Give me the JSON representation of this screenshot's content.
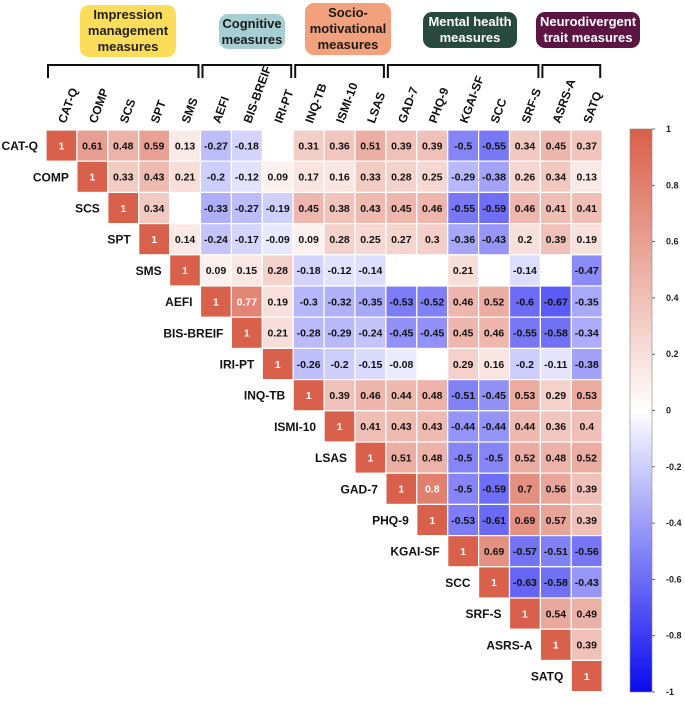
{
  "chart_data": {
    "type": "heatmap",
    "variables": [
      "CAT-Q",
      "COMP",
      "SCS",
      "SPT",
      "SMS",
      "AEFI",
      "BIS-BREIF",
      "IRI-PT",
      "INQ-TB",
      "ISMI-10",
      "LSAS",
      "GAD-7",
      "PHQ-9",
      "KGAI-SF",
      "SCC",
      "SRF-S",
      "ASRS-A",
      "SATQ"
    ],
    "groups": [
      {
        "name": "Impression management measures",
        "label": "Impression\nmanagement\nmeasures",
        "variables": [
          "CAT-Q",
          "COMP",
          "SCS",
          "SPT",
          "SMS"
        ],
        "color": "#FCDD5A"
      },
      {
        "name": "Cognitive measures",
        "label": "Cognitive\nmeasures",
        "variables": [
          "AEFI",
          "BIS-BREIF",
          "IRI-PT"
        ],
        "color": "#A7CED3"
      },
      {
        "name": "Socio-motivational measures",
        "label": "Socio-\nmotivational\nmeasures",
        "variables": [
          "INQ-TB",
          "ISMI-10",
          "LSAS"
        ],
        "color": "#F3A07C"
      },
      {
        "name": "Mental health measures",
        "label": "Mental health\nmeasures",
        "variables": [
          "GAD-7",
          "PHQ-9",
          "KGAI-SF",
          "SCC",
          "SRF-S"
        ],
        "color": "#27493E"
      },
      {
        "name": "Neurodivergent trait measures",
        "label": "Neurodivergent\ntrait measures",
        "variables": [
          "ASRS-A",
          "SATQ"
        ],
        "color": "#5C1443"
      }
    ],
    "matrix": [
      [
        1,
        0.61,
        0.48,
        0.59,
        0.13,
        -0.27,
        -0.18,
        null,
        0.31,
        0.36,
        0.51,
        0.39,
        0.39,
        -0.5,
        -0.55,
        0.34,
        0.45,
        0.37
      ],
      [
        null,
        1,
        0.33,
        0.43,
        0.21,
        -0.2,
        -0.12,
        0.09,
        0.17,
        0.16,
        0.33,
        0.28,
        0.25,
        -0.29,
        -0.38,
        0.26,
        0.34,
        0.13
      ],
      [
        null,
        null,
        1,
        0.34,
        null,
        -0.33,
        -0.27,
        -0.19,
        0.45,
        0.38,
        0.43,
        0.45,
        0.46,
        -0.55,
        -0.59,
        0.46,
        0.41,
        0.41
      ],
      [
        null,
        null,
        null,
        1,
        0.14,
        -0.24,
        -0.17,
        -0.09,
        0.09,
        0.28,
        0.25,
        0.27,
        0.3,
        -0.36,
        -0.43,
        0.2,
        0.39,
        0.19
      ],
      [
        null,
        null,
        null,
        null,
        1,
        0.09,
        0.15,
        0.28,
        -0.18,
        -0.12,
        -0.14,
        null,
        null,
        0.21,
        null,
        -0.14,
        null,
        -0.47
      ],
      [
        null,
        null,
        null,
        null,
        null,
        1,
        0.77,
        0.19,
        -0.3,
        -0.32,
        -0.35,
        -0.53,
        -0.52,
        0.46,
        0.52,
        -0.6,
        -0.67,
        -0.35
      ],
      [
        null,
        null,
        null,
        null,
        null,
        null,
        1,
        0.21,
        -0.28,
        -0.29,
        -0.24,
        -0.45,
        -0.45,
        0.45,
        0.46,
        -0.55,
        -0.58,
        -0.34
      ],
      [
        null,
        null,
        null,
        null,
        null,
        null,
        null,
        1,
        -0.26,
        -0.2,
        -0.15,
        -0.08,
        null,
        0.29,
        0.16,
        -0.2,
        -0.11,
        -0.38
      ],
      [
        null,
        null,
        null,
        null,
        null,
        null,
        null,
        null,
        1,
        0.39,
        0.46,
        0.44,
        0.48,
        -0.51,
        -0.45,
        0.53,
        0.29,
        0.53
      ],
      [
        null,
        null,
        null,
        null,
        null,
        null,
        null,
        null,
        null,
        1,
        0.41,
        0.43,
        0.43,
        -0.44,
        -0.44,
        0.44,
        0.36,
        0.4
      ],
      [
        null,
        null,
        null,
        null,
        null,
        null,
        null,
        null,
        null,
        null,
        1,
        0.51,
        0.48,
        -0.5,
        -0.5,
        0.52,
        0.48,
        0.52
      ],
      [
        null,
        null,
        null,
        null,
        null,
        null,
        null,
        null,
        null,
        null,
        null,
        1,
        0.8,
        -0.5,
        -0.59,
        0.7,
        0.56,
        0.39
      ],
      [
        null,
        null,
        null,
        null,
        null,
        null,
        null,
        null,
        null,
        null,
        null,
        null,
        1,
        -0.53,
        -0.61,
        0.69,
        0.57,
        0.39
      ],
      [
        null,
        null,
        null,
        null,
        null,
        null,
        null,
        null,
        null,
        null,
        null,
        null,
        null,
        1,
        0.69,
        -0.57,
        -0.51,
        -0.56
      ],
      [
        null,
        null,
        null,
        null,
        null,
        null,
        null,
        null,
        null,
        null,
        null,
        null,
        null,
        null,
        1,
        -0.63,
        -0.58,
        -0.43
      ],
      [
        null,
        null,
        null,
        null,
        null,
        null,
        null,
        null,
        null,
        null,
        null,
        null,
        null,
        null,
        null,
        1,
        0.54,
        0.49
      ],
      [
        null,
        null,
        null,
        null,
        null,
        null,
        null,
        null,
        null,
        null,
        null,
        null,
        null,
        null,
        null,
        null,
        1,
        0.39
      ],
      [
        null,
        null,
        null,
        null,
        null,
        null,
        null,
        null,
        null,
        null,
        null,
        null,
        null,
        null,
        null,
        null,
        null,
        1
      ]
    ],
    "colorbar": {
      "ticks": [
        "1",
        "0.8",
        "0.6",
        "0.4",
        "0.2",
        "0",
        "-0.2",
        "-0.4",
        "-0.6",
        "-0.8",
        "-1"
      ],
      "range": [
        -1,
        1
      ],
      "colors": {
        "negative": "#0A0AF0",
        "zero": "#FFFFFF",
        "positive": "#D9604A"
      }
    }
  }
}
